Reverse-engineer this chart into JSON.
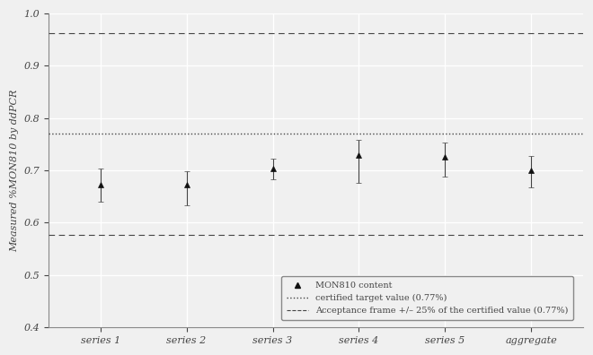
{
  "categories": [
    "series 1",
    "series 2",
    "series 3",
    "series 4",
    "series 5",
    "aggregate"
  ],
  "values": [
    0.672,
    0.672,
    0.703,
    0.729,
    0.726,
    0.7
  ],
  "errors_low": [
    0.031,
    0.038,
    0.02,
    0.052,
    0.038,
    0.032
  ],
  "errors_high": [
    0.031,
    0.026,
    0.02,
    0.03,
    0.028,
    0.028
  ],
  "certified_value": 0.77,
  "acceptance_upper": 0.9625,
  "acceptance_lower": 0.5775,
  "ylim": [
    0.4,
    1.0
  ],
  "ylabel": "Measured %MON810 by ddPCR",
  "line_color": "#444444",
  "marker_color": "#111111",
  "certified_line_color": "#444444",
  "acceptance_line_color": "#444444",
  "bg_color": "#ffffff",
  "legend_marker_label": "MON810 content",
  "legend_dotted_label": "certified target value (0.77%)",
  "legend_dashed_label": "Acceptance frame +/– 25% of the certified value (0.77%)",
  "font_color": "#444444",
  "tick_color": "#444444"
}
